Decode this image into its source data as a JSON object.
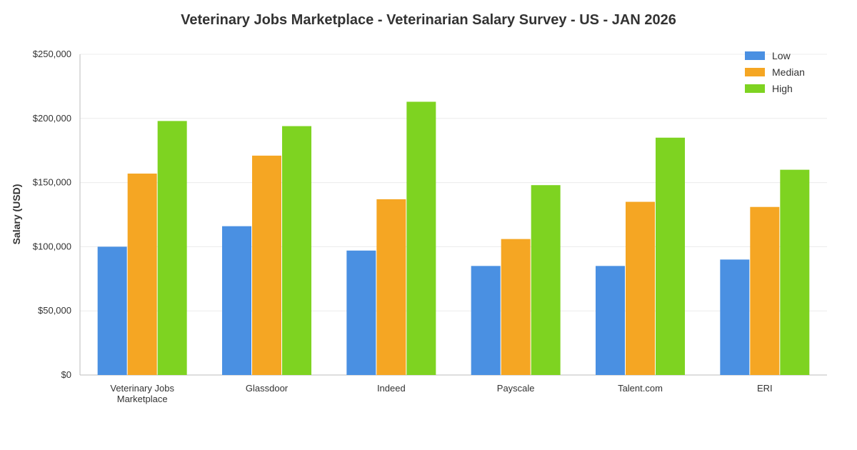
{
  "chart_data": {
    "type": "bar",
    "title": "Veterinary Jobs Marketplace - Veterinarian Salary Survey - US - JAN 2026",
    "xlabel": "",
    "ylabel": "Salary (USD)",
    "ylim": [
      0,
      250000
    ],
    "yticks": [
      0,
      50000,
      100000,
      150000,
      200000,
      250000
    ],
    "ytick_labels": [
      "$0",
      "$50,000",
      "$100,000",
      "$150,000",
      "$200,000",
      "$250,000"
    ],
    "grid": true,
    "legend_position": "top-right",
    "categories": [
      [
        "Veterinary Jobs",
        "Marketplace"
      ],
      [
        "Glassdoor"
      ],
      [
        "Indeed"
      ],
      [
        "Payscale"
      ],
      [
        "Talent.com"
      ],
      [
        "ERI"
      ]
    ],
    "series": [
      {
        "name": "Low",
        "color": "#4a90e2",
        "values": [
          100000,
          116000,
          97000,
          85000,
          85000,
          90000
        ]
      },
      {
        "name": "Median",
        "color": "#f5a623",
        "values": [
          157000,
          171000,
          137000,
          106000,
          135000,
          131000
        ]
      },
      {
        "name": "High",
        "color": "#7ed321",
        "values": [
          198000,
          194000,
          213000,
          148000,
          185000,
          160000
        ]
      }
    ]
  }
}
